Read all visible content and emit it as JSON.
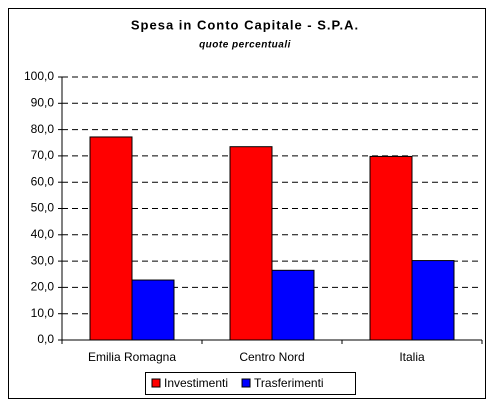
{
  "chart_data": {
    "type": "bar",
    "title": "Spesa in Conto Capitale - S.P.A.",
    "subtitle": "quote percentuali",
    "categories": [
      "Emilia Romagna",
      "Centro Nord",
      "Italia"
    ],
    "series": [
      {
        "name": "Investimenti",
        "color": "#ff0000",
        "values": [
          77.2,
          73.5,
          69.8
        ]
      },
      {
        "name": "Trasferimenti",
        "color": "#0000ff",
        "values": [
          22.8,
          26.5,
          30.2
        ]
      }
    ],
    "ylim": [
      0,
      100
    ],
    "yticks": [
      {
        "value": 0,
        "label": "0,0"
      },
      {
        "value": 10,
        "label": "10,0"
      },
      {
        "value": 20,
        "label": "20,0"
      },
      {
        "value": 30,
        "label": "30,0"
      },
      {
        "value": 40,
        "label": "40,0"
      },
      {
        "value": 50,
        "label": "50,0"
      },
      {
        "value": 60,
        "label": "60,0"
      },
      {
        "value": 70,
        "label": "70,0"
      },
      {
        "value": 80,
        "label": "80,0"
      },
      {
        "value": 90,
        "label": "90,0"
      },
      {
        "value": 100,
        "label": "100,0"
      }
    ],
    "grid": true,
    "legend": "bottom"
  }
}
